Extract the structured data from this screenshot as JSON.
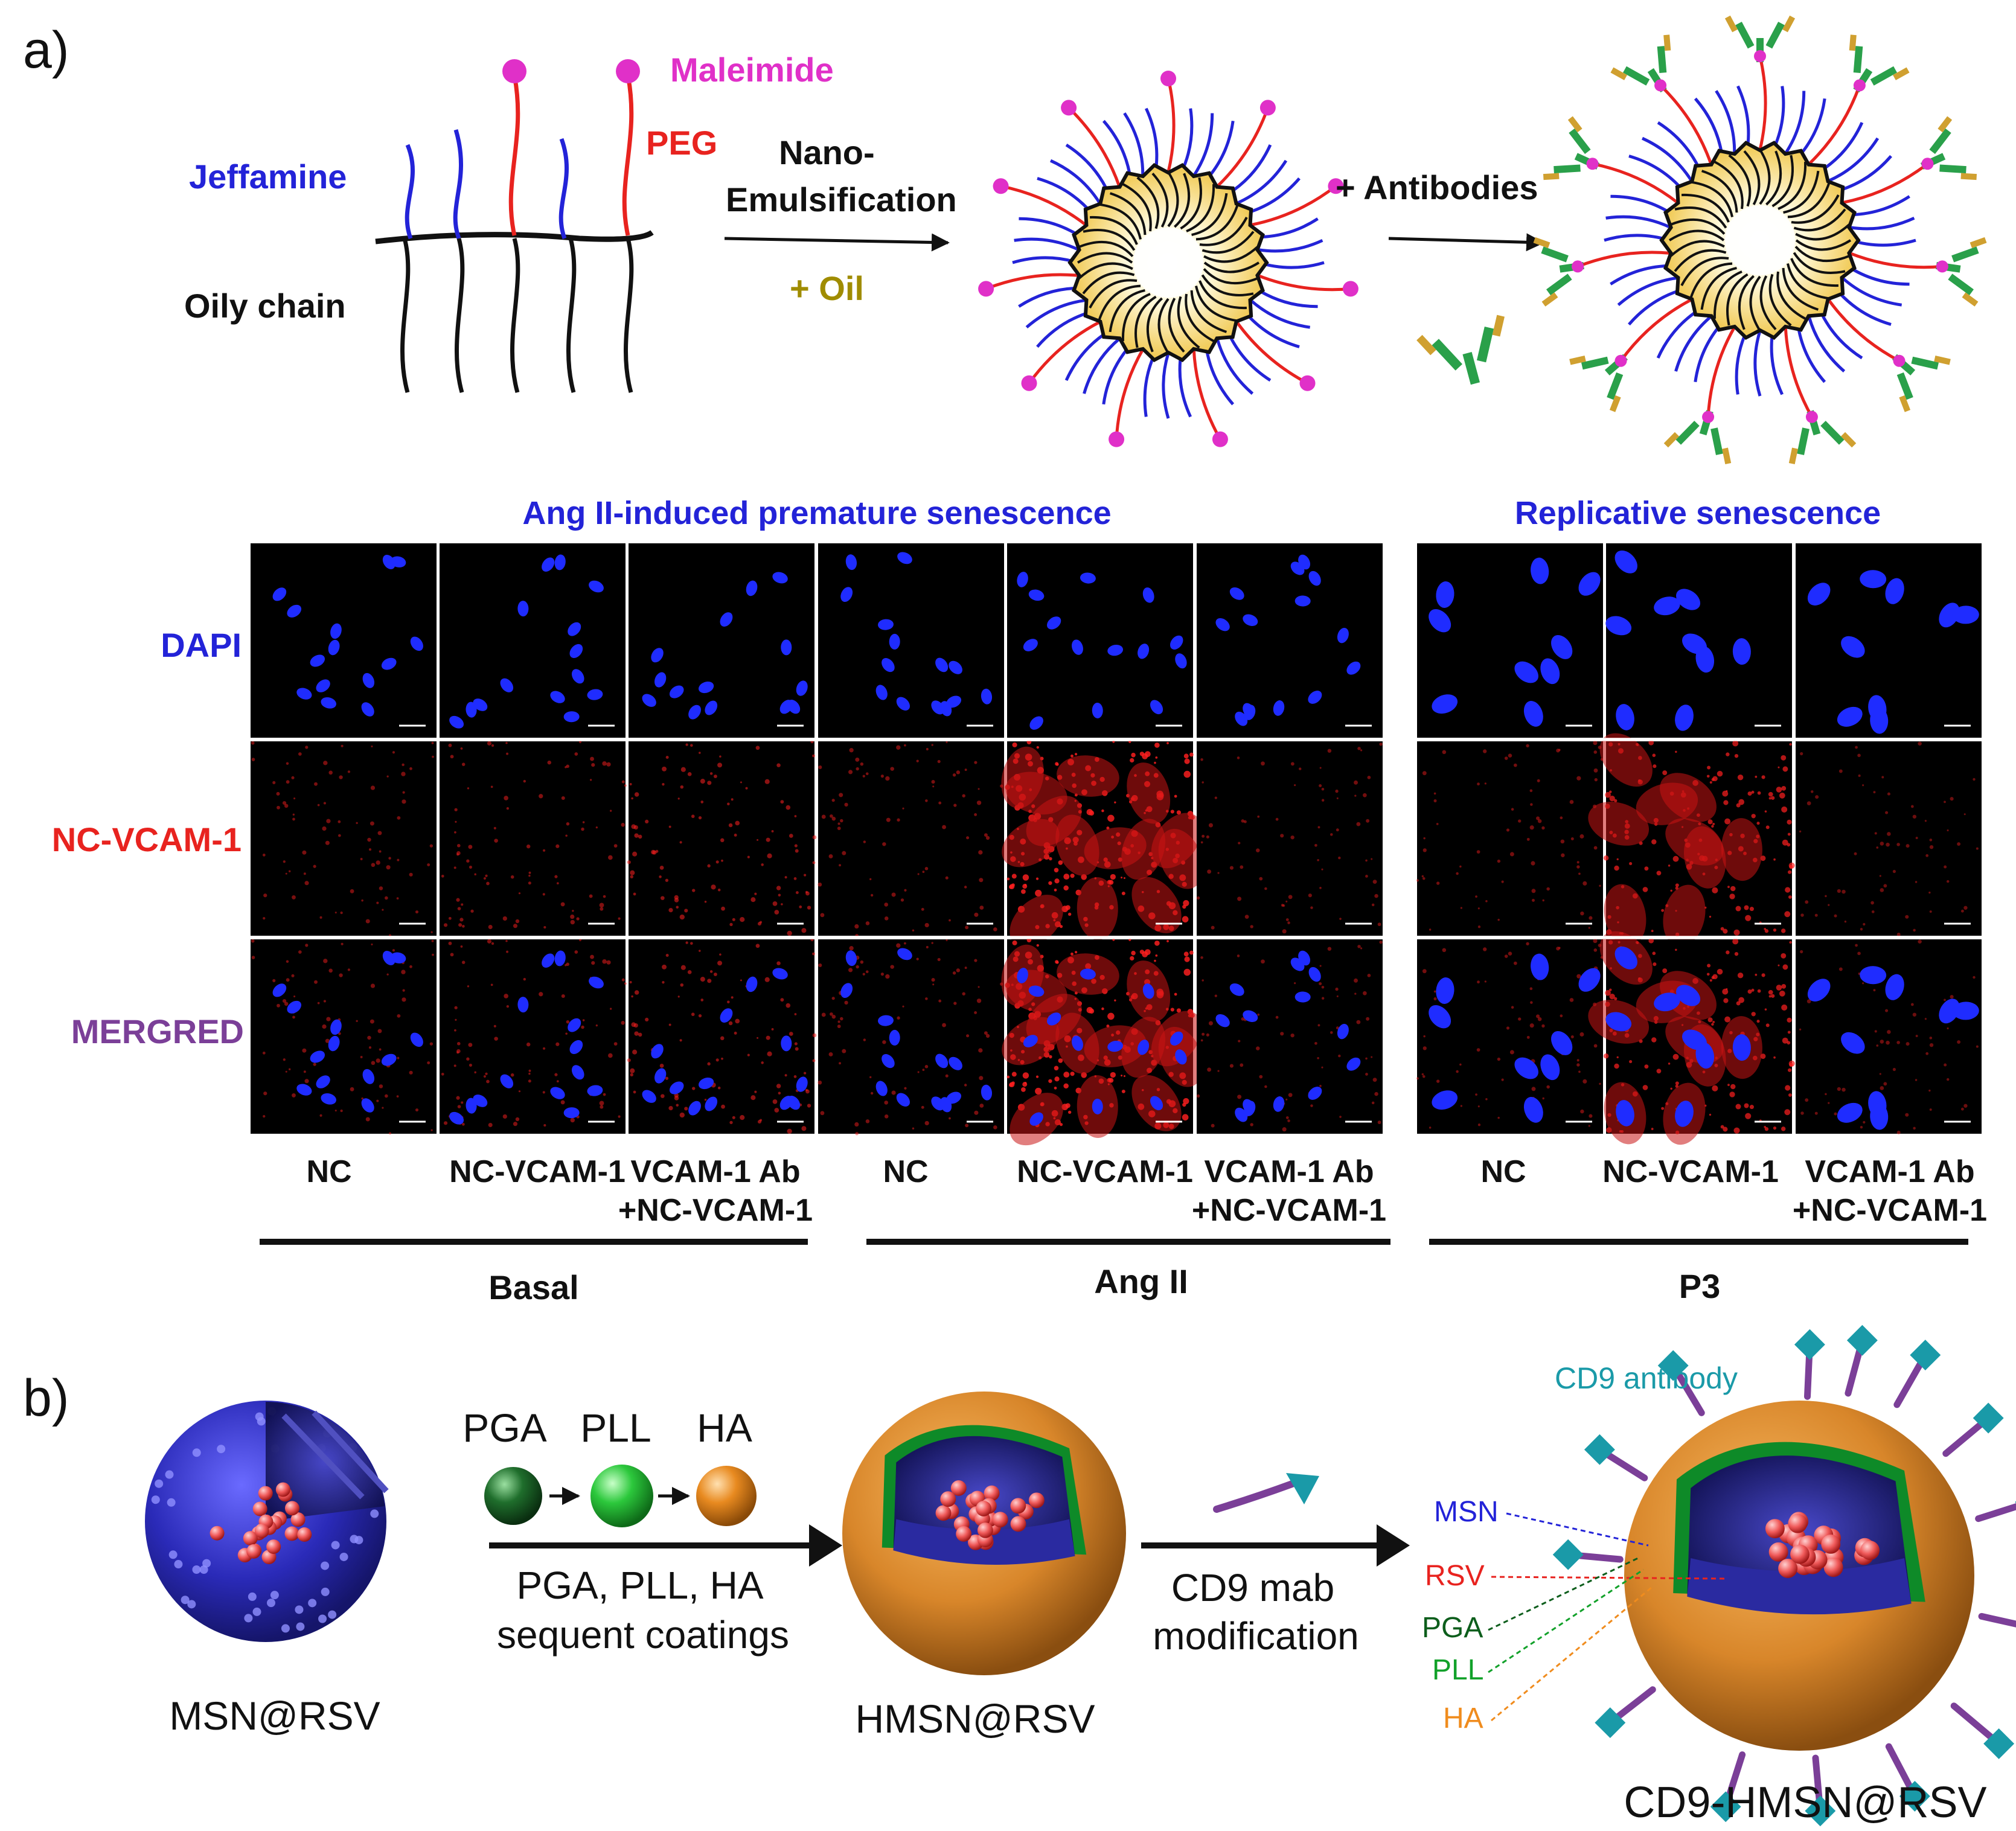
{
  "panel_a": {
    "letter": "a)",
    "labels": {
      "maleimide": "Maleimide",
      "peg": "PEG",
      "jeffamine": "Jeffamine",
      "oily_chain": "Oily chain",
      "nano": "Nano-",
      "emulsification": "Emulsification",
      "oil": "+ Oil",
      "antibodies": "+ Antibodies"
    },
    "headers": {
      "angii": "Ang II-induced premature senescence",
      "replicative": "Replicative senescence"
    },
    "rows": [
      "DAPI",
      "NC-VCAM-1",
      "MERGRED"
    ],
    "conditions": [
      {
        "l1": "NC",
        "l2": ""
      },
      {
        "l1": "NC-VCAM-1",
        "l2": ""
      },
      {
        "l1": "VCAM-1 Ab",
        "l2": "+NC-VCAM-1"
      },
      {
        "l1": "NC",
        "l2": ""
      },
      {
        "l1": "NC-VCAM-1",
        "l2": ""
      },
      {
        "l1": "VCAM-1 Ab",
        "l2": "+NC-VCAM-1"
      },
      {
        "l1": "NC",
        "l2": ""
      },
      {
        "l1": "NC-VCAM-1",
        "l2": ""
      },
      {
        "l1": "VCAM-1 Ab",
        "l2": "+NC-VCAM-1"
      }
    ],
    "groups": [
      "Basal",
      "Ang II",
      "P3"
    ],
    "red_intensity": [
      0.25,
      0.3,
      0.4,
      0.25,
      0.95,
      0.2,
      0.2,
      0.7,
      0.15
    ]
  },
  "panel_b": {
    "letter": "b)",
    "msn": "MSN@RSV",
    "pga": "PGA",
    "pll": "PLL",
    "ha": "HA",
    "arrow1_l1": "PGA, PLL, HA",
    "arrow1_l2": "sequent coatings",
    "hmsn": "HMSN@RSV",
    "arrow2_l1": "CD9 mab",
    "arrow2_l2": "modification",
    "cd9_antibody": "CD9 antibody",
    "leg_msn": "MSN",
    "leg_rsv": "RSV",
    "leg_pga": "PGA",
    "leg_pll": "PLL",
    "leg_ha": "HA",
    "final": "CD9-HMSN@RSV"
  },
  "colors": {
    "blue": "#2323d8",
    "red": "#e8231f",
    "magenta": "#e030c8",
    "olive": "#a08c00",
    "purple": "#7b3f98",
    "teal": "#1a9aa8",
    "green": "#12a12a",
    "darkgreen": "#0d5e1c",
    "orange": "#f08c1e"
  }
}
